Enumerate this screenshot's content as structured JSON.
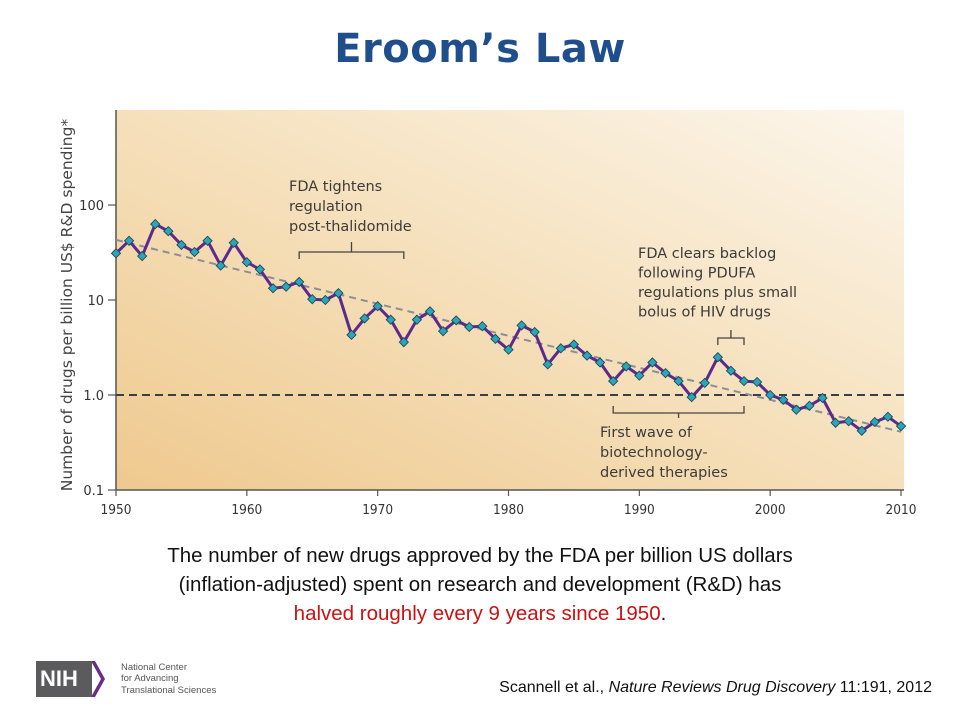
{
  "slide": {
    "title": "Eroom’s Law",
    "caption_line1": "The number of new drugs approved by the FDA per billion US dollars",
    "caption_line2": "(inflation-adjusted) spent on research and development (R&D) has",
    "caption_highlight": "halved roughly every 9 years since 1950",
    "caption_end": ".",
    "highlight_color": "#cc1111",
    "title_color": "#1f4e8c",
    "citation_authors": "Scannell et al., ",
    "citation_journal": "Nature Reviews Drug Discovery",
    "citation_ref": " 11:191, 2012",
    "logo": {
      "mark": "NIH",
      "line1": "National Center",
      "line2": "for Advancing",
      "line3": "Translational Sciences"
    }
  },
  "chart_data": {
    "type": "line",
    "title": "",
    "xlabel": "",
    "ylabel": "Number of drugs per billion US$ R&D spending*",
    "yscale": "log",
    "xlim": [
      1950,
      2010
    ],
    "ylim": [
      0.1,
      1000
    ],
    "x_ticks": [
      1950,
      1960,
      1970,
      1980,
      1990,
      2000,
      2010
    ],
    "x_tick_labels": [
      "1950",
      "1960",
      "1970",
      "1980",
      "1990",
      "2000",
      "2010"
    ],
    "y_ticks": [
      0.1,
      1,
      10,
      100
    ],
    "y_tick_labels": [
      "0.1",
      "1.0",
      "10",
      "100"
    ],
    "grid": false,
    "reference_line": {
      "y": 1.0,
      "style": "dashed"
    },
    "series": [
      {
        "name": "Drugs per billion US$ R&D",
        "color": "#5b2a8c",
        "marker_color": "#2aa6b8",
        "x": [
          1950,
          1951,
          1952,
          1953,
          1954,
          1955,
          1956,
          1957,
          1958,
          1959,
          1960,
          1961,
          1962,
          1963,
          1964,
          1965,
          1966,
          1967,
          1968,
          1969,
          1970,
          1971,
          1972,
          1973,
          1974,
          1975,
          1976,
          1977,
          1978,
          1979,
          1980,
          1981,
          1982,
          1983,
          1984,
          1985,
          1986,
          1987,
          1988,
          1989,
          1990,
          1991,
          1992,
          1993,
          1994,
          1995,
          1996,
          1997,
          1998,
          1999,
          2000,
          2001,
          2002,
          2003,
          2004,
          2005,
          2006,
          2007,
          2008,
          2009,
          2010
        ],
        "values": [
          31,
          42,
          29,
          63,
          53,
          38,
          32,
          42,
          23,
          40,
          25,
          21,
          13.3,
          13.8,
          15.5,
          10.2,
          10,
          11.8,
          4.3,
          6.4,
          8.6,
          6.2,
          3.6,
          6.2,
          7.6,
          4.7,
          6.1,
          5.2,
          5.3,
          3.9,
          3.0,
          5.4,
          4.6,
          2.1,
          3.1,
          3.4,
          2.6,
          2.2,
          1.4,
          2.0,
          1.6,
          2.2,
          1.7,
          1.4,
          0.95,
          1.34,
          2.5,
          1.8,
          1.4,
          1.37,
          1.0,
          0.89,
          0.7,
          0.77,
          0.93,
          0.51,
          0.53,
          0.42,
          0.52,
          0.59,
          0.47
        ]
      },
      {
        "name": "Trend (halving every ~9 years)",
        "style": "dashed",
        "color": "#8a8f94",
        "x": [
          1950,
          2010
        ],
        "values": [
          43,
          0.41
        ]
      }
    ],
    "annotations": [
      {
        "id": "thalidomide",
        "lines": [
          "FDA tightens",
          "regulation",
          "post-thalidomide"
        ],
        "range": [
          1964,
          1972
        ]
      },
      {
        "id": "pdufa",
        "lines": [
          "FDA clears backlog",
          "following PDUFA",
          "regulations plus small",
          "bolus of HIV drugs"
        ],
        "range": [
          1996,
          1998
        ]
      },
      {
        "id": "biotech",
        "lines": [
          "First wave of",
          "biotechnology-",
          "derived therapies"
        ],
        "range": [
          1988,
          1998
        ]
      }
    ]
  }
}
